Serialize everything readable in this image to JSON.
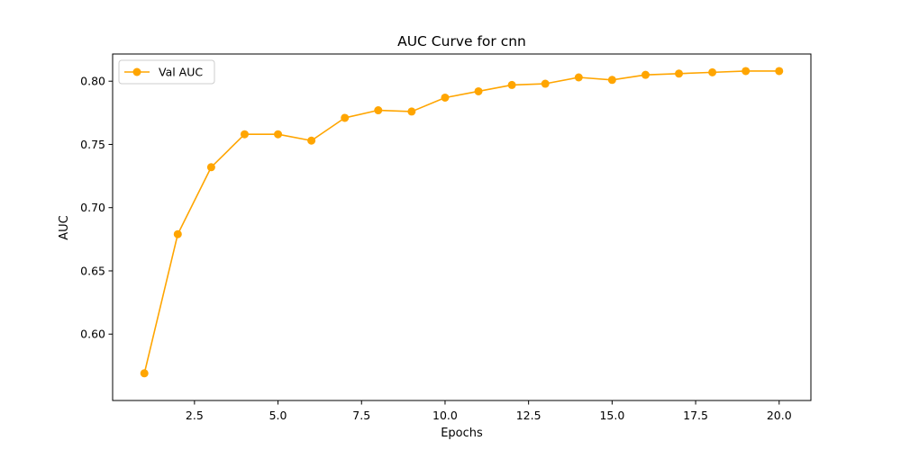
{
  "chart_data": {
    "type": "line",
    "title": "AUC Curve for cnn",
    "xlabel": "Epochs",
    "ylabel": "AUC",
    "xlim": [
      0.05,
      20.95
    ],
    "ylim": [
      0.5475,
      0.8215
    ],
    "xticks": [
      2.5,
      5.0,
      7.5,
      10.0,
      12.5,
      15.0,
      17.5,
      20.0
    ],
    "xtick_labels": [
      "2.5",
      "5.0",
      "7.5",
      "10.0",
      "12.5",
      "15.0",
      "17.5",
      "20.0"
    ],
    "yticks": [
      0.6,
      0.65,
      0.7,
      0.75,
      0.8
    ],
    "ytick_labels": [
      "0.60",
      "0.65",
      "0.70",
      "0.75",
      "0.80"
    ],
    "grid": false,
    "legend": "top-left",
    "series": [
      {
        "name": "Val AUC",
        "color": "#FFA500",
        "marker": "circle",
        "x": [
          1,
          2,
          3,
          4,
          5,
          6,
          7,
          8,
          9,
          10,
          11,
          12,
          13,
          14,
          15,
          16,
          17,
          18,
          19,
          20
        ],
        "y": [
          0.569,
          0.679,
          0.732,
          0.758,
          0.758,
          0.753,
          0.771,
          0.777,
          0.776,
          0.787,
          0.792,
          0.797,
          0.798,
          0.803,
          0.801,
          0.805,
          0.806,
          0.807,
          0.808,
          0.808
        ]
      }
    ]
  }
}
